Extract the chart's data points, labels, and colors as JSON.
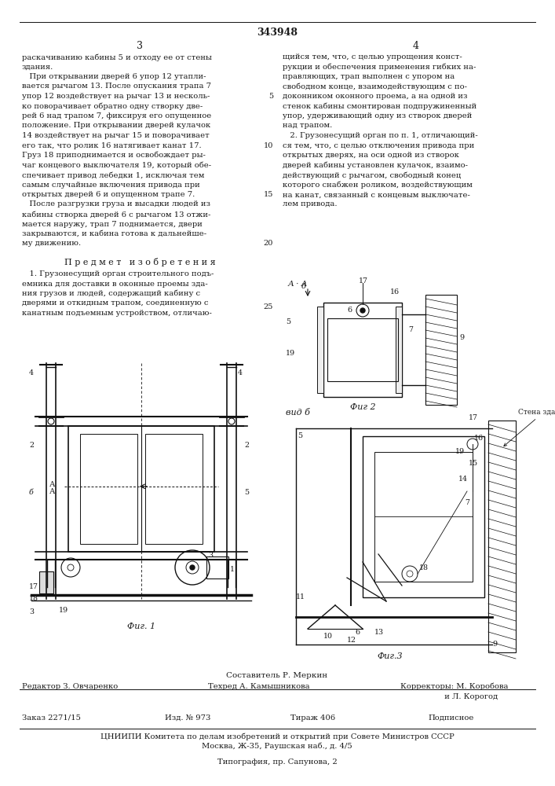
{
  "patent_number": "343948",
  "page_left": "3",
  "page_right": "4",
  "background_color": "#ffffff",
  "text_color": "#1a1a1a",
  "line_color": "#111111",
  "col1_lines": [
    "раскачиванию кабины 5 и отходу ее от стены",
    "здания.",
    "   При открывании дверей 6 упор 12 утапли-",
    "вается рычагом 13. После опускания трапа 7",
    "упор 12 воздействует на рычаг 13 и несколь-",
    "ко поворачивает обратно одну створку две-",
    "рей 6 над трапом 7, фиксируя его опущенное",
    "положение. При открывании дверей кулачок",
    "14 воздействует на рычаг 15 и поворачивает",
    "его так, что ролик 16 натягивает канат 17.",
    "Груз 18 приподнимается и освобождает ры-",
    "чаг концевого выключателя 19, который обе-",
    "спечивает привод лебедки 1, исключая тем",
    "самым случайные включения привода при",
    "открытых дверей 6 и опущенном трапе 7.",
    "   После разгрузки груза и высадки людей из",
    "кабины створка дверей 6 с рычагом 13 отжи-",
    "мается наружу, трап 7 поднимается, двери",
    "закрываются, и кабина готова к дальнейше-",
    "му движению."
  ],
  "col2_lines": [
    "щийся тем, что, с целью упрощения конст-",
    "рукции и обеспечения применения гибких на-",
    "правляющих, трап выполнен с упором на",
    "свободном конце, взаимодействующим с по-",
    "доконником оконного проема, а на одной из",
    "стенок кабины смонтирован подпружиненный",
    "упор, удерживающий одну из створок дверей",
    "над трапом.",
    "   2. Грузонесущий орган по п. 1, отличающий-",
    "ся тем, что, с целью отключения привода при",
    "открытых дверях, на оси одной из створок",
    "дверей кабины установлен кулачок, взаимо-",
    "действующий с рычагом, свободный конец",
    "которого снабжен роликом, воздействующим",
    "на канат, связанный с концевым выключате-",
    "лем привода."
  ],
  "predmet_title": "П р е д м е т   и з о б р е т е н и я",
  "predmet_lines": [
    "   1. Грузонесущий орган строительного подъ-",
    "емника для доставки в оконные проемы зда-",
    "ния грузов и людей, содержащий кабину с",
    "дверями и откидным трапом, соединенную с",
    "канатным подъемным устройством, отличаю-"
  ],
  "line_numbers_right": [
    "5",
    "10",
    "15",
    "20",
    "25"
  ],
  "fig1_label": "Фиг. 1",
  "fig2_label": "Фиг 2",
  "fig3_label": "Фиг.3",
  "aa_label": "А · А",
  "vidb_label": "вид б",
  "stena_label": "Стена здания",
  "footer_sestavitel": "Составитель Р. Меркин",
  "footer_editor_l": "Редактор З. Овчаренко",
  "footer_editor_c": "Техред А. Камышникова",
  "footer_editor_r1": "Корректоры: М. Коробова",
  "footer_editor_r2": "                  и Л. Корогод",
  "footer_zakaz": "Заказ 2271/15",
  "footer_izd": "Изд. № 973",
  "footer_tirazh": "Тираж 406",
  "footer_podp": "Подписное",
  "footer_cniip": "ЦНИИПИ Комитета по делам изобретений и открытий при Совете Министров СССР",
  "footer_addr": "Москва, Ж-35, Раушская наб., д. 4/5",
  "footer_tipo": "Типография, пр. Сапунова, 2"
}
